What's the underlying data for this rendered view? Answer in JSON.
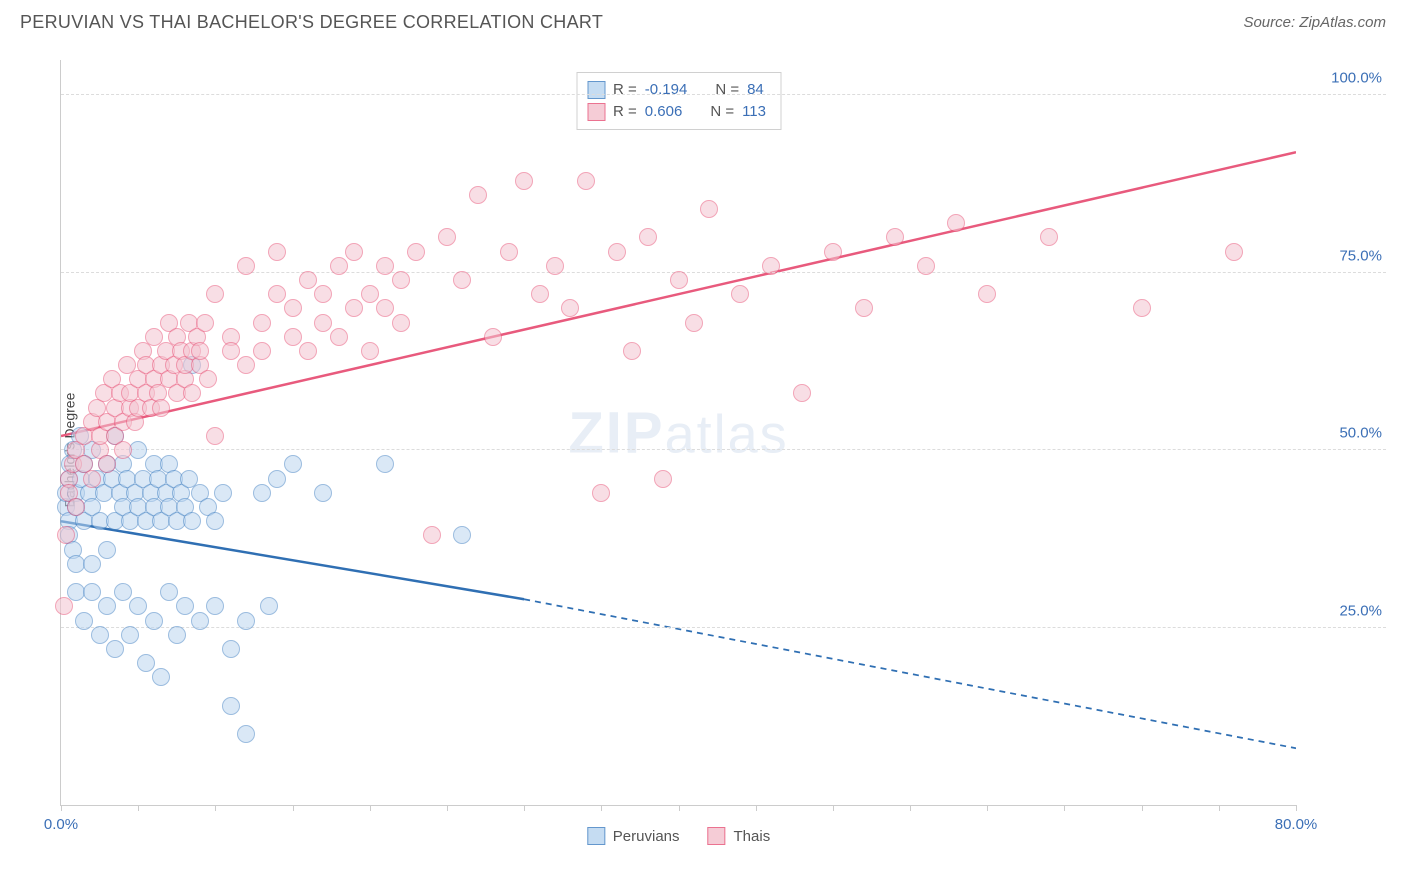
{
  "header": {
    "title": "PERUVIAN VS THAI BACHELOR'S DEGREE CORRELATION CHART",
    "source": "Source: ZipAtlas.com"
  },
  "chart": {
    "type": "scatter",
    "ylabel": "Bachelor's Degree",
    "watermark_prefix": "ZIP",
    "watermark_suffix": "atlas",
    "background_color": "#ffffff",
    "grid_color": "#dcdcdc",
    "axis_color": "#cccccc",
    "tick_label_color": "#3b6fb6",
    "xlim": [
      0,
      80
    ],
    "ylim": [
      0,
      105
    ],
    "xticks": [
      0,
      5,
      10,
      15,
      20,
      25,
      30,
      35,
      40,
      45,
      50,
      55,
      60,
      65,
      70,
      75,
      80
    ],
    "xtick_labels": {
      "0": "0.0%",
      "80": "80.0%"
    },
    "yticks": [
      25,
      50,
      75,
      100
    ],
    "ytick_labels": {
      "25": "25.0%",
      "50": "50.0%",
      "75": "75.0%",
      "100": "100.0%"
    },
    "series": [
      {
        "name": "Peruvians",
        "fill": "#bcd6f0",
        "stroke": "#4a86c5",
        "fill_opacity": 0.55,
        "marker_radius": 9,
        "trend": {
          "x1": 0,
          "y1": 40,
          "x2_solid": 30,
          "y2_solid": 29,
          "x2_dash": 80,
          "y2_dash": 8,
          "color": "#2f6fb3",
          "width": 2.5
        },
        "r_label": "R =",
        "r_value": "-0.194",
        "n_label": "N =",
        "n_value": "84",
        "points": [
          [
            0.3,
            42
          ],
          [
            0.3,
            44
          ],
          [
            0.5,
            46
          ],
          [
            0.5,
            40
          ],
          [
            0.5,
            38
          ],
          [
            0.6,
            48
          ],
          [
            0.8,
            36
          ],
          [
            0.8,
            50
          ],
          [
            1,
            44
          ],
          [
            1,
            42
          ],
          [
            1,
            34
          ],
          [
            1,
            30
          ],
          [
            1.2,
            52
          ],
          [
            1.3,
            46
          ],
          [
            1.5,
            40
          ],
          [
            1.5,
            48
          ],
          [
            1.5,
            26
          ],
          [
            1.8,
            44
          ],
          [
            2,
            42
          ],
          [
            2,
            34
          ],
          [
            2,
            30
          ],
          [
            2,
            50
          ],
          [
            2.3,
            46
          ],
          [
            2.5,
            40
          ],
          [
            2.5,
            24
          ],
          [
            2.8,
            44
          ],
          [
            3,
            48
          ],
          [
            3,
            36
          ],
          [
            3,
            28
          ],
          [
            3.3,
            46
          ],
          [
            3.5,
            40
          ],
          [
            3.5,
            52
          ],
          [
            3.5,
            22
          ],
          [
            3.8,
            44
          ],
          [
            4,
            42
          ],
          [
            4,
            30
          ],
          [
            4,
            48
          ],
          [
            4.3,
            46
          ],
          [
            4.5,
            40
          ],
          [
            4.5,
            24
          ],
          [
            4.8,
            44
          ],
          [
            5,
            42
          ],
          [
            5,
            28
          ],
          [
            5,
            50
          ],
          [
            5.3,
            46
          ],
          [
            5.5,
            40
          ],
          [
            5.5,
            20
          ],
          [
            5.8,
            44
          ],
          [
            6,
            42
          ],
          [
            6,
            48
          ],
          [
            6,
            26
          ],
          [
            6.3,
            46
          ],
          [
            6.5,
            40
          ],
          [
            6.5,
            18
          ],
          [
            6.8,
            44
          ],
          [
            7,
            42
          ],
          [
            7,
            30
          ],
          [
            7,
            48
          ],
          [
            7.3,
            46
          ],
          [
            7.5,
            40
          ],
          [
            7.5,
            24
          ],
          [
            7.8,
            44
          ],
          [
            8,
            42
          ],
          [
            8,
            28
          ],
          [
            8.3,
            46
          ],
          [
            8.5,
            40
          ],
          [
            8.5,
            62
          ],
          [
            9,
            44
          ],
          [
            9,
            26
          ],
          [
            9.5,
            42
          ],
          [
            10,
            40
          ],
          [
            10,
            28
          ],
          [
            10.5,
            44
          ],
          [
            11,
            22
          ],
          [
            11,
            14
          ],
          [
            12,
            26
          ],
          [
            12,
            10
          ],
          [
            13,
            44
          ],
          [
            13.5,
            28
          ],
          [
            14,
            46
          ],
          [
            15,
            48
          ],
          [
            17,
            44
          ],
          [
            21,
            48
          ],
          [
            26,
            38
          ]
        ]
      },
      {
        "name": "Thais",
        "fill": "#f4c4d0",
        "stroke": "#e85a7d",
        "fill_opacity": 0.55,
        "marker_radius": 9,
        "trend": {
          "x1": 0,
          "y1": 52,
          "x2_solid": 80,
          "y2_solid": 92,
          "color": "#e85a7d",
          "width": 2.5
        },
        "r_label": "R =",
        "r_value": "0.606",
        "n_label": "N =",
        "n_value": "113",
        "points": [
          [
            0.2,
            28
          ],
          [
            0.3,
            38
          ],
          [
            0.5,
            46
          ],
          [
            0.5,
            44
          ],
          [
            0.8,
            48
          ],
          [
            1,
            42
          ],
          [
            1,
            50
          ],
          [
            1.5,
            52
          ],
          [
            1.5,
            48
          ],
          [
            2,
            46
          ],
          [
            2,
            54
          ],
          [
            2.3,
            56
          ],
          [
            2.5,
            50
          ],
          [
            2.5,
            52
          ],
          [
            2.8,
            58
          ],
          [
            3,
            54
          ],
          [
            3,
            48
          ],
          [
            3.3,
            60
          ],
          [
            3.5,
            52
          ],
          [
            3.5,
            56
          ],
          [
            3.8,
            58
          ],
          [
            4,
            54
          ],
          [
            4,
            50
          ],
          [
            4.3,
            62
          ],
          [
            4.5,
            56
          ],
          [
            4.5,
            58
          ],
          [
            4.8,
            54
          ],
          [
            5,
            60
          ],
          [
            5,
            56
          ],
          [
            5.3,
            64
          ],
          [
            5.5,
            58
          ],
          [
            5.5,
            62
          ],
          [
            5.8,
            56
          ],
          [
            6,
            60
          ],
          [
            6,
            66
          ],
          [
            6.3,
            58
          ],
          [
            6.5,
            62
          ],
          [
            6.5,
            56
          ],
          [
            6.8,
            64
          ],
          [
            7,
            60
          ],
          [
            7,
            68
          ],
          [
            7.3,
            62
          ],
          [
            7.5,
            58
          ],
          [
            7.5,
            66
          ],
          [
            7.8,
            64
          ],
          [
            8,
            60
          ],
          [
            8,
            62
          ],
          [
            8.3,
            68
          ],
          [
            8.5,
            64
          ],
          [
            8.5,
            58
          ],
          [
            8.8,
            66
          ],
          [
            9,
            62
          ],
          [
            9,
            64
          ],
          [
            9.3,
            68
          ],
          [
            9.5,
            60
          ],
          [
            10,
            52
          ],
          [
            10,
            72
          ],
          [
            11,
            66
          ],
          [
            11,
            64
          ],
          [
            12,
            62
          ],
          [
            12,
            76
          ],
          [
            13,
            64
          ],
          [
            13,
            68
          ],
          [
            14,
            72
          ],
          [
            14,
            78
          ],
          [
            15,
            66
          ],
          [
            15,
            70
          ],
          [
            16,
            64
          ],
          [
            16,
            74
          ],
          [
            17,
            68
          ],
          [
            17,
            72
          ],
          [
            18,
            76
          ],
          [
            18,
            66
          ],
          [
            19,
            70
          ],
          [
            19,
            78
          ],
          [
            20,
            64
          ],
          [
            20,
            72
          ],
          [
            21,
            76
          ],
          [
            21,
            70
          ],
          [
            22,
            74
          ],
          [
            22,
            68
          ],
          [
            23,
            78
          ],
          [
            24,
            38
          ],
          [
            25,
            80
          ],
          [
            26,
            74
          ],
          [
            27,
            86
          ],
          [
            28,
            66
          ],
          [
            29,
            78
          ],
          [
            30,
            88
          ],
          [
            31,
            72
          ],
          [
            32,
            76
          ],
          [
            33,
            70
          ],
          [
            34,
            88
          ],
          [
            35,
            44
          ],
          [
            36,
            78
          ],
          [
            37,
            64
          ],
          [
            38,
            80
          ],
          [
            39,
            46
          ],
          [
            40,
            74
          ],
          [
            41,
            68
          ],
          [
            42,
            84
          ],
          [
            44,
            72
          ],
          [
            46,
            76
          ],
          [
            48,
            58
          ],
          [
            50,
            78
          ],
          [
            52,
            70
          ],
          [
            54,
            80
          ],
          [
            56,
            76
          ],
          [
            58,
            82
          ],
          [
            60,
            72
          ],
          [
            64,
            80
          ],
          [
            70,
            70
          ],
          [
            76,
            78
          ]
        ]
      }
    ],
    "legend": {
      "series1_label": "Peruvians",
      "series2_label": "Thais"
    }
  }
}
